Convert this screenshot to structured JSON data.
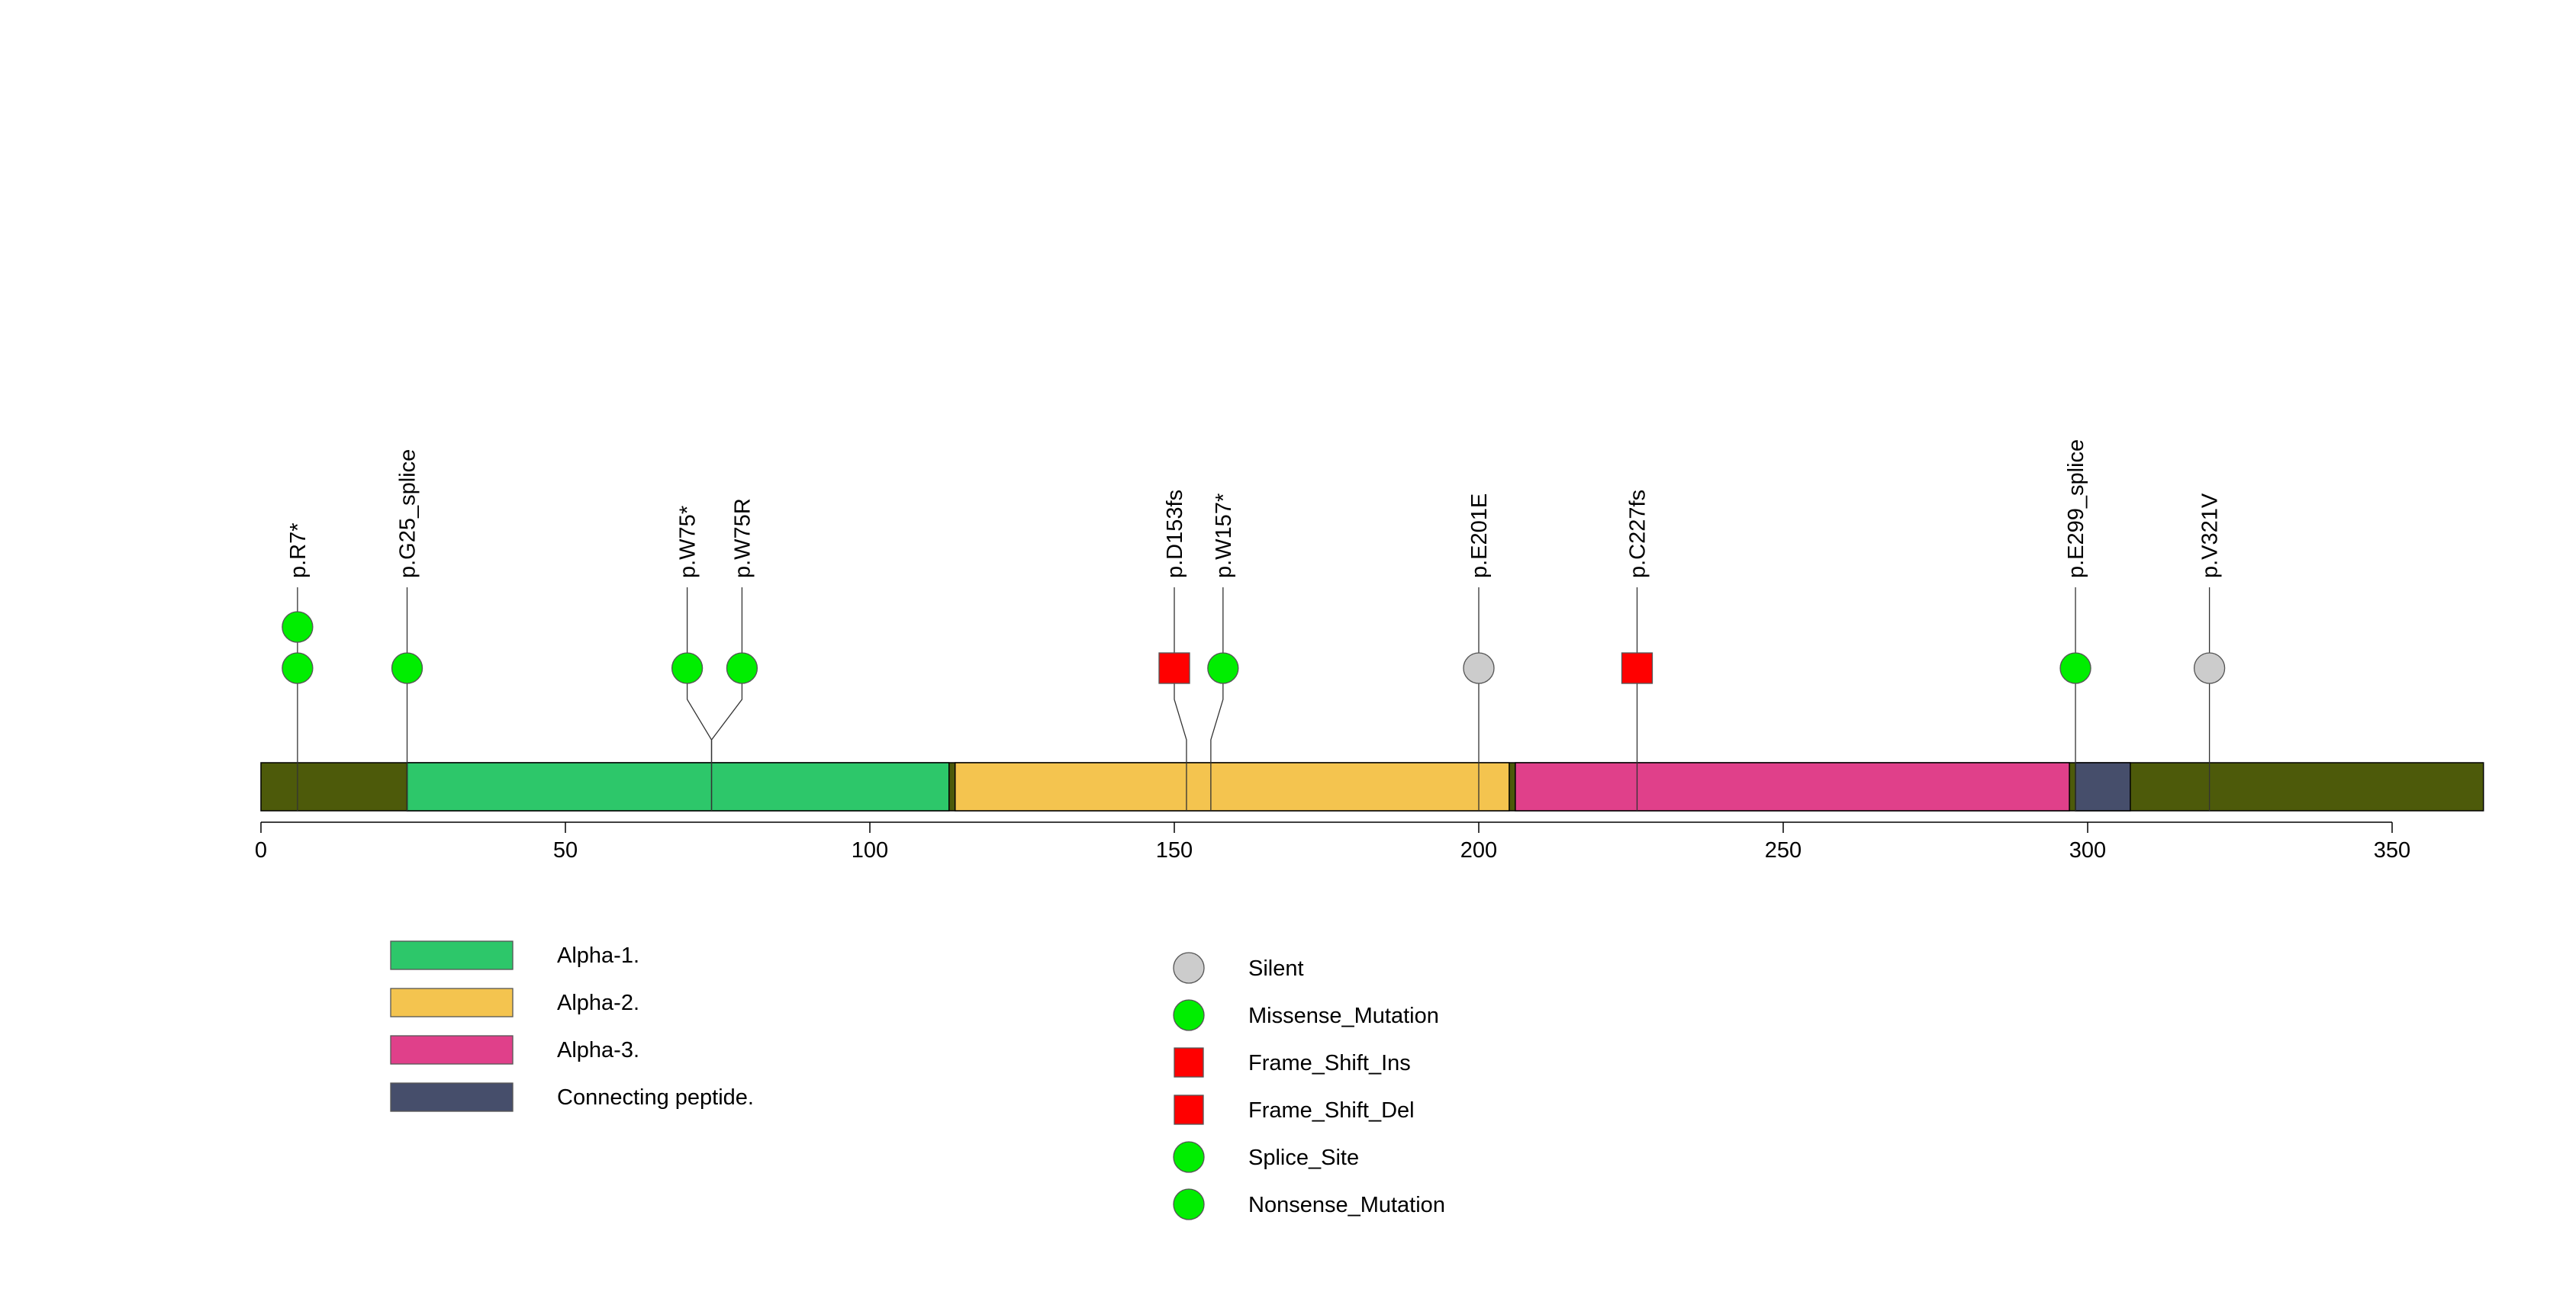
{
  "chart_data": {
    "type": "lollipop",
    "protein_length": 365,
    "x_ticks": [
      0,
      50,
      100,
      150,
      200,
      250,
      300,
      350
    ],
    "regions": [
      {
        "name": "Alpha-1.",
        "start": 24,
        "end": 113,
        "color": "#2DC76A"
      },
      {
        "name": "Alpha-2.",
        "start": 114,
        "end": 205,
        "color": "#F4C44F"
      },
      {
        "name": "Alpha-3.",
        "start": 206,
        "end": 297,
        "color": "#E0408A"
      },
      {
        "name": "Connecting peptide.",
        "start": 298,
        "end": 307,
        "color": "#464E6B"
      }
    ],
    "backbone_color": "#4D5A0A",
    "mutations": [
      {
        "label": "p.R7*",
        "position": 6,
        "label_x": 6,
        "type": "Nonsense_Mutation",
        "count": 2
      },
      {
        "label": "p.G25_splice",
        "position": 24,
        "label_x": 24,
        "type": "Splice_Site",
        "count": 1
      },
      {
        "label": "p.W75*",
        "position": 74,
        "label_x": 70,
        "type": "Nonsense_Mutation",
        "count": 1
      },
      {
        "label": "p.W75R",
        "position": 74,
        "label_x": 79,
        "type": "Missense_Mutation",
        "count": 1
      },
      {
        "label": "p.D153fs",
        "position": 152,
        "label_x": 150,
        "type": "Frame_Shift_Del",
        "count": 1
      },
      {
        "label": "p.W157*",
        "position": 156,
        "label_x": 158,
        "type": "Nonsense_Mutation",
        "count": 1
      },
      {
        "label": "p.E201E",
        "position": 200,
        "label_x": 200,
        "type": "Silent",
        "count": 1
      },
      {
        "label": "p.C227fs",
        "position": 226,
        "label_x": 226,
        "type": "Frame_Shift_Del",
        "count": 1
      },
      {
        "label": "p.E299_splice",
        "position": 298,
        "label_x": 298,
        "type": "Splice_Site",
        "count": 1
      },
      {
        "label": "p.V321V",
        "position": 320,
        "label_x": 320,
        "type": "Silent",
        "count": 1
      }
    ],
    "legend_regions": [
      {
        "name": "Alpha-1.",
        "color": "#2DC76A"
      },
      {
        "name": "Alpha-2.",
        "color": "#F4C44F"
      },
      {
        "name": "Alpha-3.",
        "color": "#E0408A"
      },
      {
        "name": "Connecting peptide.",
        "color": "#464E6B"
      }
    ],
    "legend_mutations": [
      {
        "name": "Silent",
        "shape": "circle",
        "color": "#CCCCCC"
      },
      {
        "name": "Missense_Mutation",
        "shape": "circle",
        "color": "#00EE00"
      },
      {
        "name": "Frame_Shift_Ins",
        "shape": "square",
        "color": "#FF0000"
      },
      {
        "name": "Frame_Shift_Del",
        "shape": "square",
        "color": "#FF0000"
      },
      {
        "name": "Splice_Site",
        "shape": "circle",
        "color": "#00EE00"
      },
      {
        "name": "Nonsense_Mutation",
        "shape": "circle",
        "color": "#00EE00"
      }
    ],
    "type_colors": {
      "Silent": "#CCCCCC",
      "Missense_Mutation": "#00EE00",
      "Nonsense_Mutation": "#00EE00",
      "Splice_Site": "#00EE00",
      "Frame_Shift_Ins": "#FF0000",
      "Frame_Shift_Del": "#FF0000"
    },
    "type_shapes": {
      "Silent": "circle",
      "Missense_Mutation": "circle",
      "Nonsense_Mutation": "circle",
      "Splice_Site": "circle",
      "Frame_Shift_Ins": "square",
      "Frame_Shift_Del": "square"
    }
  }
}
